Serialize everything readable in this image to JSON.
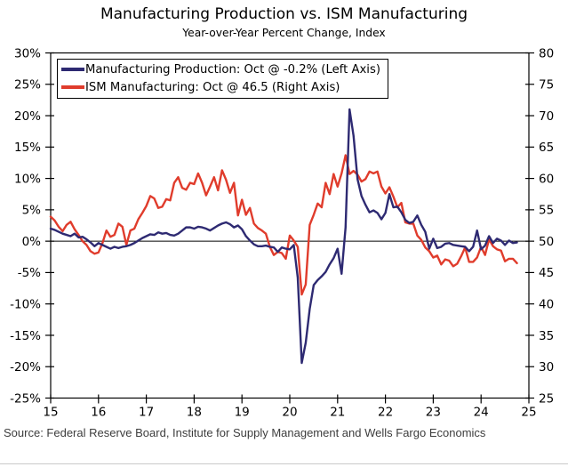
{
  "header": {
    "title": "Manufacturing Production vs. ISM Manufacturing",
    "subtitle": "Year-over-Year Percent Change, Index"
  },
  "legend": {
    "items": [
      {
        "label": "Manufacturing Production: Oct @ -0.2% (Left Axis)",
        "color": "#2e2a72"
      },
      {
        "label": "ISM Manufacturing: Oct @ 46.5 (Right Axis)",
        "color": "#e03c2c"
      }
    ]
  },
  "source": {
    "text": "Source: Federal Reserve Board, Institute for Supply Management and Wells Fargo Economics"
  },
  "chart_data": {
    "type": "line",
    "title": "Manufacturing Production vs. ISM Manufacturing",
    "subtitle": "Year-over-Year Percent Change, Index",
    "frequency": "monthly",
    "x_start": "2015-01",
    "x_end": "2024-10",
    "x_axis": {
      "tick_values": [
        15,
        16,
        17,
        18,
        19,
        20,
        21,
        22,
        23,
        24,
        25
      ],
      "tick_labels": [
        "15",
        "16",
        "17",
        "18",
        "19",
        "20",
        "21",
        "22",
        "23",
        "24",
        "25"
      ],
      "range": [
        15,
        25
      ]
    },
    "left_axis": {
      "max": 30,
      "min": -25,
      "tick_values": [
        30,
        25,
        20,
        15,
        10,
        5,
        0,
        -5,
        -10,
        -15,
        -20,
        -25
      ],
      "tick_labels": [
        "30%",
        "25%",
        "20%",
        "15%",
        "10%",
        "5%",
        "0%",
        "-5%",
        "-10%",
        "-15%",
        "-20%",
        "-25%"
      ],
      "label": "Year-over-Year Percent Change"
    },
    "right_axis": {
      "max": 80,
      "min": 25,
      "tick_values": [
        80,
        75,
        70,
        65,
        60,
        55,
        50,
        45,
        40,
        35,
        30,
        25
      ],
      "tick_labels": [
        "80",
        "75",
        "70",
        "65",
        "60",
        "55",
        "50",
        "45",
        "40",
        "35",
        "30",
        "25"
      ],
      "label": "Index"
    },
    "zero_line": true,
    "grid": false,
    "legend_position": "top-left-inside",
    "recession_band": {
      "start": 2020.083,
      "end": 2020.333,
      "color": "#dbdbdb"
    },
    "series": [
      {
        "name": "ISM Manufacturing",
        "latest_label": "Oct @ 46.5",
        "axis": "right",
        "color": "#e03c2c",
        "values": [
          53.9,
          53.3,
          52.3,
          51.6,
          52.6,
          53.1,
          51.9,
          51.0,
          50.0,
          49.4,
          48.4,
          48.0,
          48.2,
          49.7,
          51.7,
          50.7,
          51.0,
          52.8,
          52.3,
          49.4,
          51.7,
          52.0,
          53.5,
          54.5,
          55.6,
          57.2,
          56.8,
          55.3,
          55.5,
          56.7,
          56.5,
          59.3,
          60.2,
          58.5,
          58.2,
          59.3,
          59.1,
          60.8,
          59.3,
          57.3,
          58.7,
          60.2,
          58.1,
          61.3,
          59.8,
          57.7,
          59.3,
          54.1,
          56.6,
          54.2,
          55.3,
          52.8,
          52.1,
          51.7,
          51.2,
          49.1,
          47.8,
          48.3,
          48.1,
          47.2,
          50.9,
          50.1,
          49.1,
          41.5,
          43.1,
          52.6,
          54.2,
          56.0,
          55.4,
          59.3,
          57.5,
          60.7,
          58.7,
          60.8,
          63.7,
          60.7,
          61.2,
          60.6,
          59.5,
          59.9,
          61.1,
          60.8,
          61.1,
          58.7,
          57.6,
          58.6,
          57.1,
          55.4,
          56.1,
          53.0,
          52.8,
          52.8,
          50.9,
          50.2,
          49.0,
          48.4,
          47.4,
          47.7,
          46.3,
          47.1,
          46.9,
          46.0,
          46.4,
          47.6,
          49.0,
          46.7,
          46.7,
          47.4,
          49.1,
          47.8,
          50.3,
          49.2,
          48.7,
          48.5,
          46.8,
          47.2,
          47.2,
          46.5
        ]
      },
      {
        "name": "Manufacturing Production",
        "latest_label": "Oct @ -0.2%",
        "axis": "left",
        "color": "#2e2a72",
        "values": [
          2.0,
          1.8,
          1.5,
          1.2,
          1.0,
          0.8,
          1.2,
          0.6,
          0.7,
          0.3,
          -0.2,
          -0.8,
          -0.3,
          -0.6,
          -0.9,
          -1.2,
          -0.9,
          -1.1,
          -0.9,
          -0.8,
          -0.6,
          -0.3,
          0.1,
          0.5,
          0.8,
          1.1,
          1.0,
          1.4,
          1.2,
          1.3,
          1.0,
          0.9,
          1.2,
          1.7,
          2.2,
          2.2,
          2.0,
          2.3,
          2.2,
          2.0,
          1.7,
          2.1,
          2.5,
          2.8,
          3.0,
          2.7,
          2.2,
          2.5,
          1.9,
          0.8,
          0.1,
          -0.5,
          -0.8,
          -0.8,
          -0.7,
          -0.9,
          -1.0,
          -1.7,
          -1.0,
          -1.2,
          -1.3,
          -0.6,
          -5.8,
          -19.4,
          -16.2,
          -10.8,
          -7.0,
          -6.2,
          -5.6,
          -4.9,
          -3.7,
          -2.7,
          -1.2,
          -5.2,
          2.2,
          21.0,
          16.8,
          9.9,
          7.2,
          5.8,
          4.6,
          4.9,
          4.5,
          3.5,
          4.5,
          7.5,
          5.4,
          5.5,
          4.6,
          3.4,
          2.9,
          3.1,
          4.1,
          2.6,
          1.5,
          -1.2,
          0.4,
          -1.1,
          -0.9,
          -0.4,
          -0.3,
          -0.6,
          -0.7,
          -0.8,
          -0.9,
          -1.6,
          -0.9,
          1.7,
          -1.3,
          -0.7,
          0.8,
          -0.3,
          0.4,
          0.1,
          -0.6,
          0.1,
          -0.3,
          -0.2
        ]
      }
    ]
  }
}
